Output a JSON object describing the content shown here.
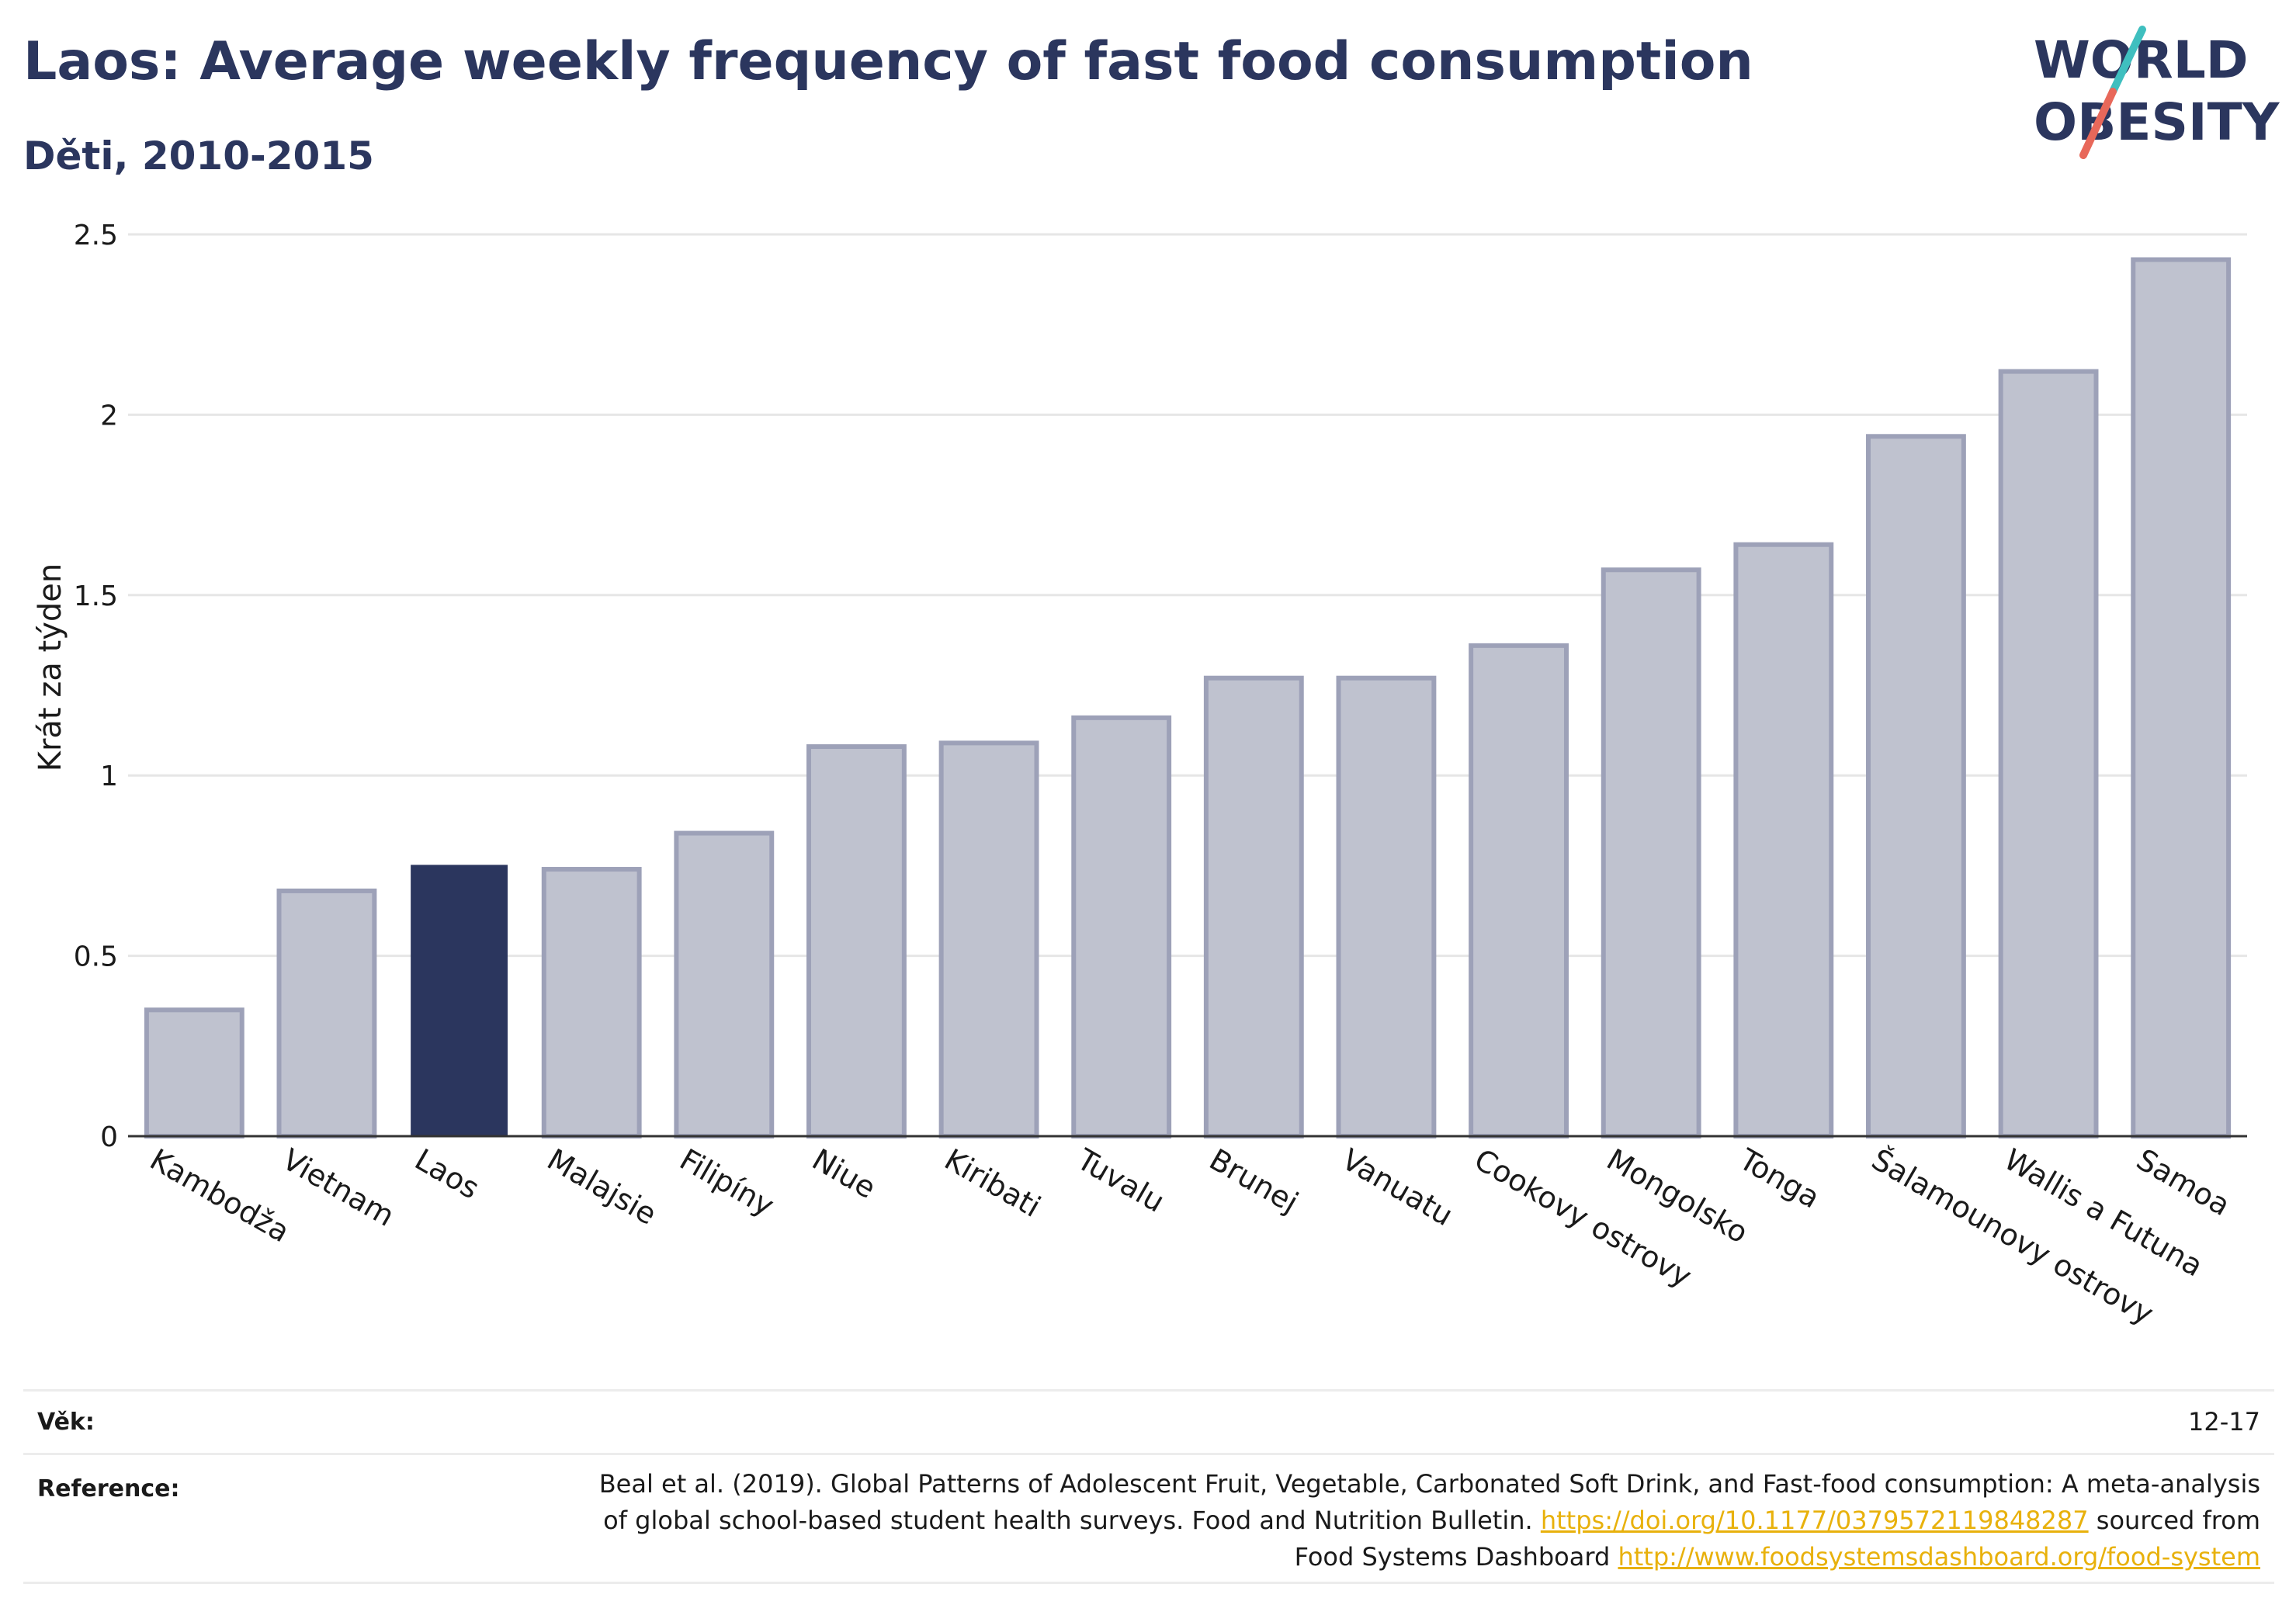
{
  "header": {
    "title": "Laos: Average weekly frequency of fast food consumption",
    "subtitle": "Děti, 2010-2015"
  },
  "logo": {
    "line1": "WORLD",
    "line2": "OBESITY",
    "colors": {
      "text": "#2b365e",
      "slash_top": "#3fbfbf",
      "slash_bottom": "#e8685a"
    }
  },
  "colors": {
    "highlight": "#2b365e",
    "bar_fill": "#bfc2cf",
    "bar_stroke": "#9da1b8",
    "grid": "#e6e6e6",
    "axis": "#333333",
    "link": "#e8b10c"
  },
  "chart_data": {
    "type": "bar",
    "title": "Laos: Average weekly frequency of fast food consumption",
    "subtitle": "Děti, 2010-2015",
    "xlabel": "",
    "ylabel": "Krát za týden",
    "ylim": [
      0,
      2.5
    ],
    "yticks": [
      0,
      0.5,
      1,
      1.5,
      2,
      2.5
    ],
    "ytick_labels": [
      "0",
      "0.5",
      "1",
      "1.5",
      "2",
      "2.5"
    ],
    "grid": true,
    "highlight": "Laos",
    "categories": [
      "Kambodža",
      "Vietnam",
      "Laos",
      "Malajsie",
      "Filipíny",
      "Niue",
      "Kiribati",
      "Tuvalu",
      "Brunej",
      "Vanuatu",
      "Cookovy ostrovy",
      "Mongolsko",
      "Tonga",
      "Šalamounovy ostrovy",
      "Wallis a Futuna",
      "Samoa"
    ],
    "values": [
      0.35,
      0.68,
      0.75,
      0.74,
      0.84,
      1.08,
      1.09,
      1.16,
      1.27,
      1.27,
      1.36,
      1.57,
      1.64,
      1.94,
      2.12,
      2.43
    ]
  },
  "meta": {
    "age_label": "Věk:",
    "age_value": "12-17",
    "reference_label": "Reference:",
    "reference_line1": "Beal et al. (2019). Global Patterns of Adolescent Fruit, Vegetable, Carbonated Soft Drink, and Fast-food consumption: A meta-analysis",
    "reference_line2_text": "of global school-based student health surveys. Food and Nutrition Bulletin. ",
    "reference_line2_link": "https://doi.org/10.1177/0379572119848287",
    "reference_line2_suffix": " sourced from",
    "reference_line3_text": "Food Systems Dashboard ",
    "reference_line3_link": "http://www.foodsystemsdashboard.org/food-system"
  }
}
